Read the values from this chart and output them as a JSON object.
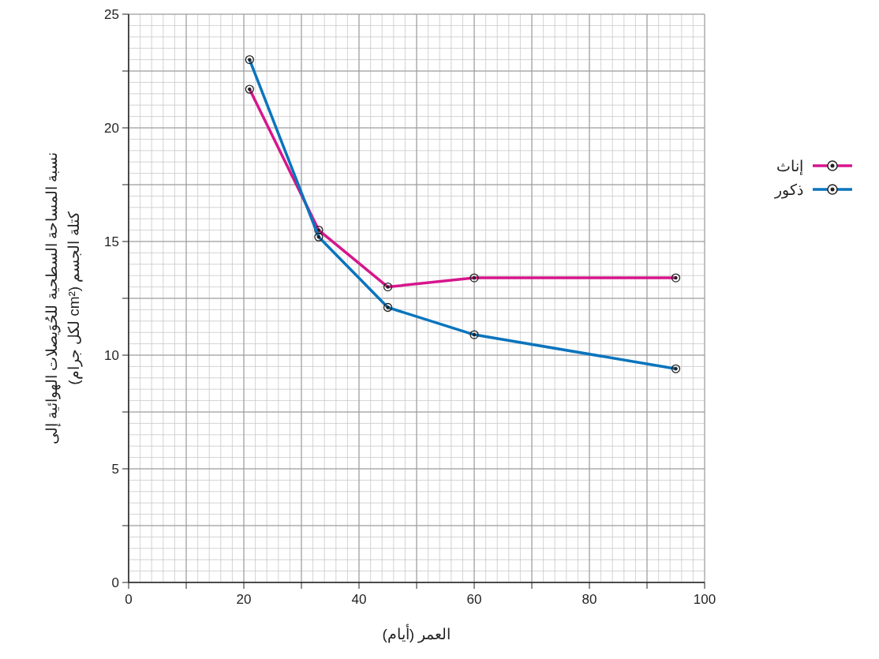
{
  "chart_data": {
    "type": "line",
    "xlabel": "العمر (أيام)",
    "ylabel": "نسبة المساحة السطحية للحُوَيصلات الهوائية إلى\nكتلة الجسم (cm² لكل جرام)",
    "x": [
      21,
      33,
      45,
      60,
      95
    ],
    "series": [
      {
        "name": "إناث",
        "color": "#d6168c",
        "values": [
          21.7,
          15.5,
          13.0,
          13.4,
          13.4
        ]
      },
      {
        "name": "ذكور",
        "color": "#0a74bd",
        "values": [
          23.0,
          15.2,
          12.1,
          10.9,
          9.4
        ]
      }
    ],
    "xlim": [
      0,
      100
    ],
    "xticks": [
      0,
      {
        "value": 10,
        "label": null
      },
      20,
      {
        "value": 30,
        "label": null
      },
      40,
      {
        "value": 50,
        "label": null
      },
      60,
      {
        "value": 70,
        "label": null
      },
      80,
      {
        "value": 90,
        "label": null
      },
      100
    ],
    "ylim": [
      0,
      25
    ],
    "yticks": [
      0,
      {
        "value": 2.5,
        "label": null
      },
      5,
      {
        "value": 7.5,
        "label": null
      },
      10,
      {
        "value": 12.5,
        "label": null
      },
      15,
      {
        "value": 17.5,
        "label": null
      },
      20,
      {
        "value": 22.5,
        "label": null
      },
      25
    ],
    "grid": true,
    "legend": "right",
    "marker": "circle",
    "line_style": "solid"
  }
}
